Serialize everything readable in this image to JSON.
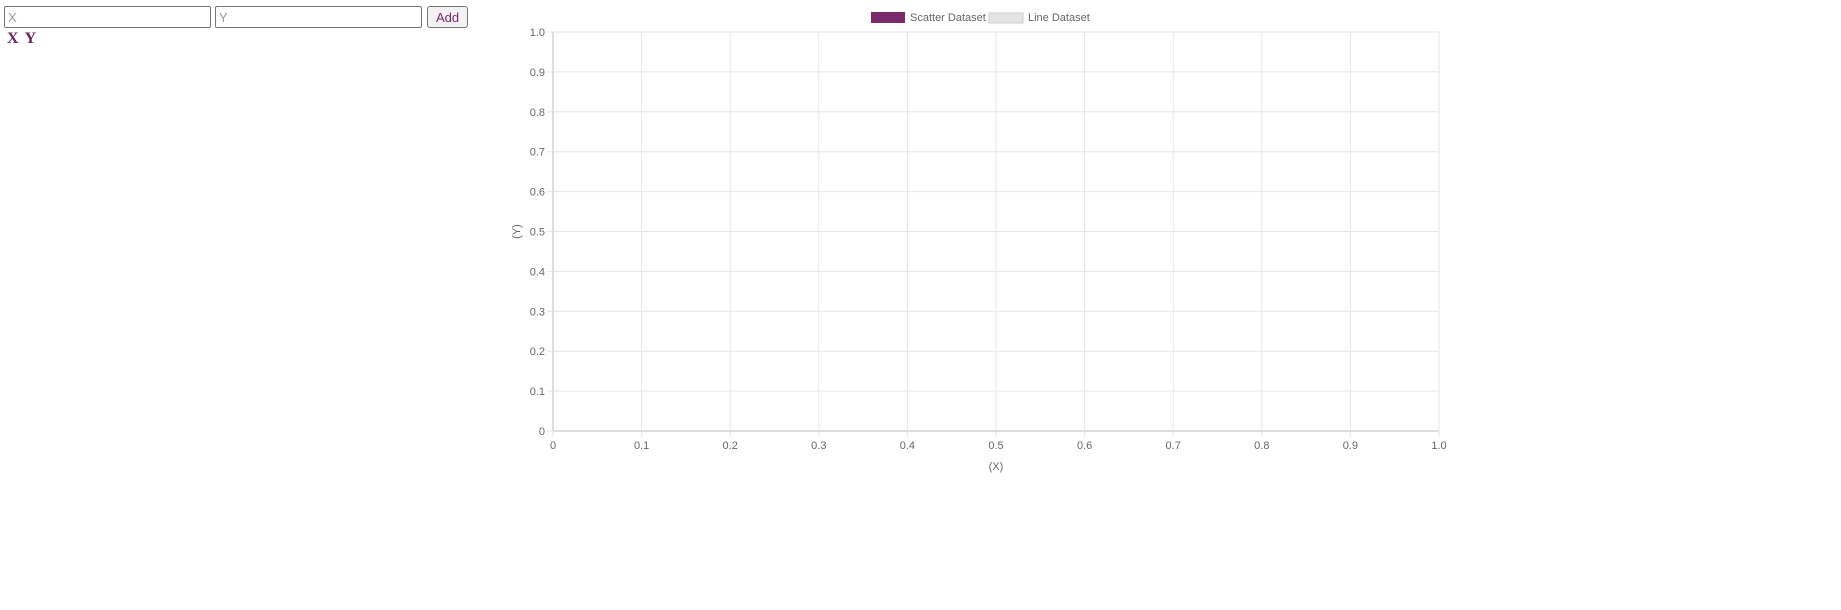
{
  "form": {
    "x_placeholder": "X",
    "y_placeholder": "Y",
    "add_label": "Add"
  },
  "table": {
    "headers": [
      "X",
      "Y"
    ],
    "rows": []
  },
  "colors": {
    "scatter": "#7b2a6b",
    "line_fill": "#e4e4e4",
    "line_border": "#cccccc",
    "grid": "#e6e6e6",
    "axis": "#bbbbbb",
    "tick_text": "#666666"
  },
  "chart_data": {
    "type": "scatter",
    "title": "",
    "xlabel": "(X)",
    "ylabel": "(Y)",
    "xlim": [
      0,
      1
    ],
    "ylim": [
      0,
      1
    ],
    "xticks": [
      "0",
      "0.1",
      "0.2",
      "0.3",
      "0.4",
      "0.5",
      "0.6",
      "0.7",
      "0.8",
      "0.9",
      "1.0"
    ],
    "yticks": [
      "0",
      "0.1",
      "0.2",
      "0.3",
      "0.4",
      "0.5",
      "0.6",
      "0.7",
      "0.8",
      "0.9",
      "1.0"
    ],
    "grid": true,
    "legend_position": "top",
    "series": [
      {
        "name": "Scatter Dataset",
        "type": "scatter",
        "points": []
      },
      {
        "name": "Line Dataset",
        "type": "line",
        "points": []
      }
    ]
  }
}
